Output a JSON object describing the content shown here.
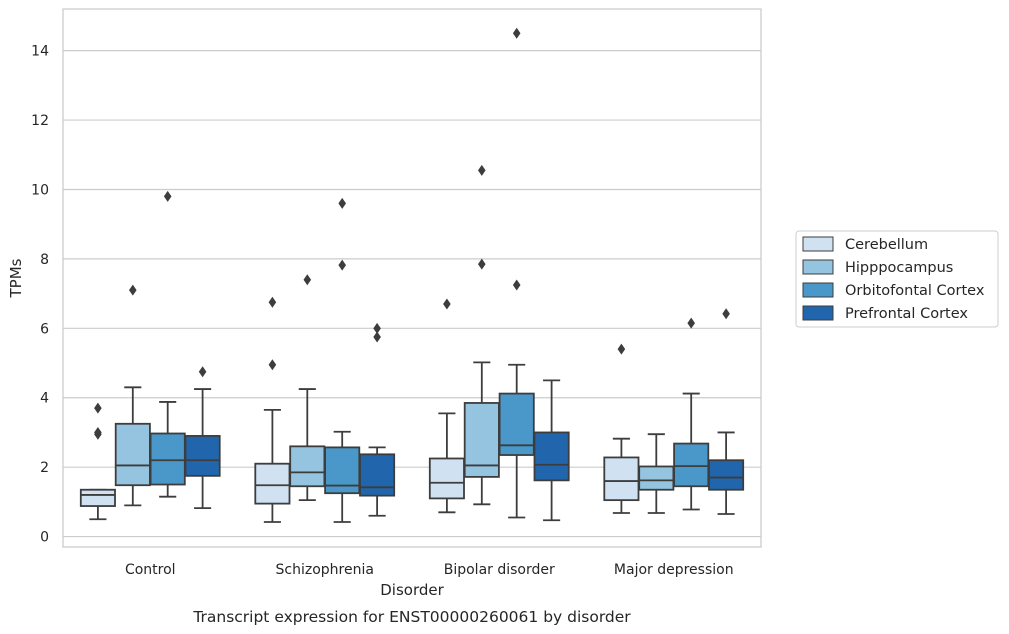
{
  "chart_data": {
    "type": "boxplot",
    "title": "",
    "caption": "Transcript expression for ENST00000260061 by disorder",
    "xlabel": "Disorder",
    "ylabel": "TPMs",
    "ylim": [
      -0.3,
      15.2
    ],
    "yticks": [
      0,
      2,
      4,
      6,
      8,
      10,
      12,
      14
    ],
    "grid": "horizontal",
    "legend": {
      "placement": "right",
      "entries": [
        "Cerebellum",
        "Hipppocampus",
        "Orbitofontal Cortex",
        "Prefrontal Cortex"
      ]
    },
    "categories": [
      "Control",
      "Schizophrenia",
      "Bipolar disorder",
      "Major depression"
    ],
    "series": [
      {
        "name": "Cerebellum",
        "color": "#d0e1f2",
        "boxes": [
          {
            "whisker_low": 0.5,
            "q1": 0.88,
            "median": 1.2,
            "q3": 1.35,
            "whisker_high": 1.35,
            "outliers": [
              3.7,
              3.0,
              2.95
            ]
          },
          {
            "whisker_low": 0.42,
            "q1": 0.95,
            "median": 1.48,
            "q3": 2.1,
            "whisker_high": 3.65,
            "outliers": [
              6.75,
              4.95
            ]
          },
          {
            "whisker_low": 0.7,
            "q1": 1.1,
            "median": 1.55,
            "q3": 2.25,
            "whisker_high": 3.55,
            "outliers": [
              6.7
            ]
          },
          {
            "whisker_low": 0.68,
            "q1": 1.05,
            "median": 1.6,
            "q3": 2.28,
            "whisker_high": 2.82,
            "outliers": [
              5.4
            ]
          }
        ]
      },
      {
        "name": "Hipppocampus",
        "color": "#94c4df",
        "boxes": [
          {
            "whisker_low": 0.9,
            "q1": 1.48,
            "median": 2.05,
            "q3": 3.25,
            "whisker_high": 4.3,
            "outliers": [
              7.1
            ]
          },
          {
            "whisker_low": 1.05,
            "q1": 1.45,
            "median": 1.85,
            "q3": 2.6,
            "whisker_high": 4.25,
            "outliers": [
              7.4
            ]
          },
          {
            "whisker_low": 0.93,
            "q1": 1.72,
            "median": 2.05,
            "q3": 3.85,
            "whisker_high": 5.02,
            "outliers": [
              10.55,
              7.85
            ]
          },
          {
            "whisker_low": 0.68,
            "q1": 1.35,
            "median": 1.62,
            "q3": 2.02,
            "whisker_high": 2.95,
            "outliers": []
          }
        ]
      },
      {
        "name": "Orbitofontal Cortex",
        "color": "#4a98c9",
        "boxes": [
          {
            "whisker_low": 1.15,
            "q1": 1.5,
            "median": 2.2,
            "q3": 2.97,
            "whisker_high": 3.88,
            "outliers": [
              9.8
            ]
          },
          {
            "whisker_low": 0.42,
            "q1": 1.25,
            "median": 1.47,
            "q3": 2.57,
            "whisker_high": 3.02,
            "outliers": [
              9.6,
              7.82
            ]
          },
          {
            "whisker_low": 0.55,
            "q1": 2.35,
            "median": 2.63,
            "q3": 4.12,
            "whisker_high": 4.95,
            "outliers": [
              14.5,
              7.25
            ]
          },
          {
            "whisker_low": 0.78,
            "q1": 1.45,
            "median": 2.03,
            "q3": 2.68,
            "whisker_high": 4.12,
            "outliers": [
              6.15
            ]
          }
        ]
      },
      {
        "name": "Prefrontal Cortex",
        "color": "#2166ac",
        "boxes": [
          {
            "whisker_low": 0.82,
            "q1": 1.75,
            "median": 2.2,
            "q3": 2.9,
            "whisker_high": 4.25,
            "outliers": [
              4.75
            ]
          },
          {
            "whisker_low": 0.6,
            "q1": 1.18,
            "median": 1.42,
            "q3": 2.37,
            "whisker_high": 2.57,
            "outliers": [
              6.0,
              5.75
            ]
          },
          {
            "whisker_low": 0.47,
            "q1": 1.62,
            "median": 2.07,
            "q3": 3.0,
            "whisker_high": 4.5,
            "outliers": []
          },
          {
            "whisker_low": 0.65,
            "q1": 1.35,
            "median": 1.7,
            "q3": 2.2,
            "whisker_high": 3.0,
            "outliers": [
              6.42
            ]
          }
        ]
      }
    ]
  }
}
